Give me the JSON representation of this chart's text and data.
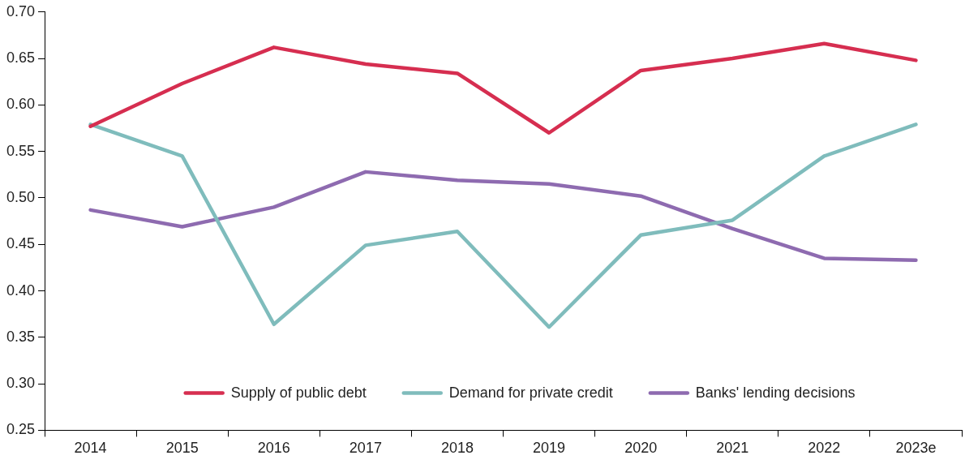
{
  "chart_data": {
    "type": "line",
    "categories": [
      "2014",
      "2015",
      "2016",
      "2017",
      "2018",
      "2019",
      "2020",
      "2021",
      "2022",
      "2023e"
    ],
    "series": [
      {
        "name": "Supply of public debt",
        "color": "#d62e50",
        "values": [
          0.577,
          0.623,
          0.662,
          0.644,
          0.634,
          0.57,
          0.637,
          0.65,
          0.666,
          0.648
        ]
      },
      {
        "name": "Demand for private credit",
        "color": "#7fbcbc",
        "values": [
          0.579,
          0.545,
          0.364,
          0.449,
          0.464,
          0.361,
          0.46,
          0.476,
          0.545,
          0.579
        ]
      },
      {
        "name": "Banks' lending decisions",
        "color": "#8e6bb0",
        "values": [
          0.487,
          0.469,
          0.49,
          0.528,
          0.519,
          0.515,
          0.502,
          0.467,
          0.435,
          0.433
        ]
      }
    ],
    "ylim": [
      0.25,
      0.7
    ],
    "yticks": [
      {
        "value": 0.25,
        "label": "0.25"
      },
      {
        "value": 0.3,
        "label": "0.30"
      },
      {
        "value": 0.35,
        "label": "0.35"
      },
      {
        "value": 0.4,
        "label": "0.40"
      },
      {
        "value": 0.45,
        "label": "0.45"
      },
      {
        "value": 0.5,
        "label": "0.50"
      },
      {
        "value": 0.55,
        "label": "0.55"
      },
      {
        "value": 0.6,
        "label": "0.60"
      },
      {
        "value": 0.65,
        "label": "0.65"
      },
      {
        "value": 0.7,
        "label": "0.70"
      }
    ],
    "grid": false,
    "legend": "bottom",
    "marker": "none",
    "line_style": "solid"
  }
}
